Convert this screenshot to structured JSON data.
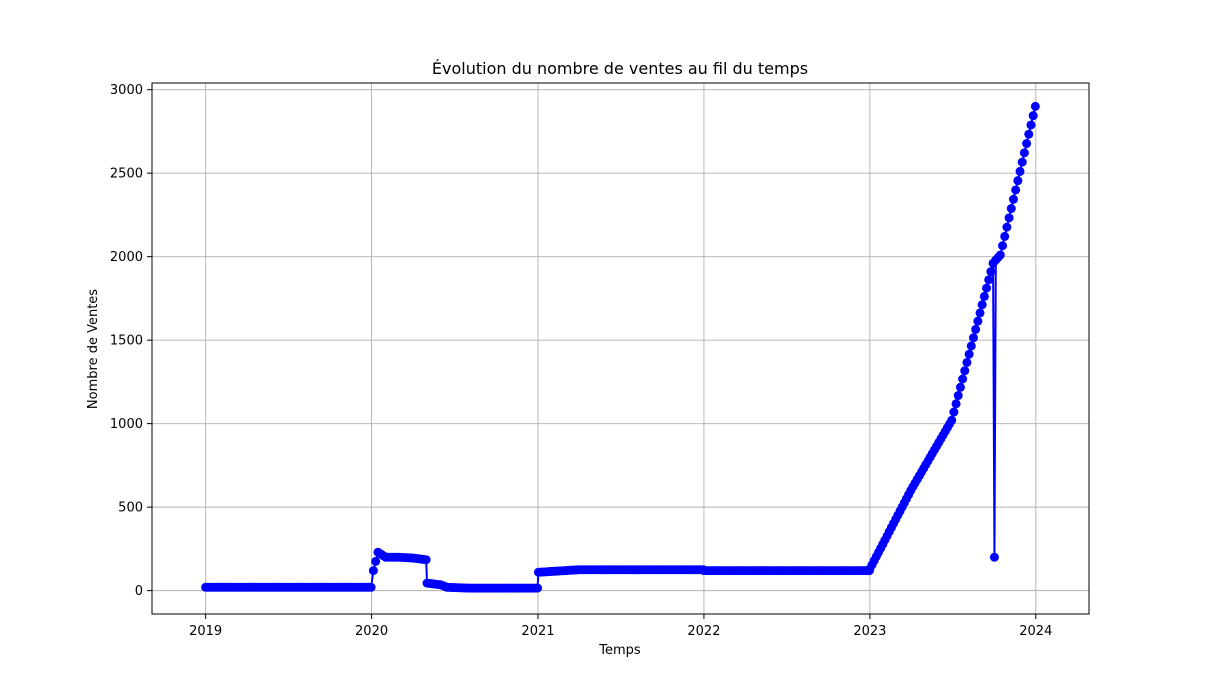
{
  "chart_data": {
    "type": "line",
    "title": "Évolution du nombre de ventes au fil du temps",
    "xlabel": "Temps",
    "ylabel": "Nombre de Ventes",
    "x_ticks": [
      "2019",
      "2020",
      "2021",
      "2022",
      "2023",
      "2024"
    ],
    "y_ticks": [
      "0",
      "500",
      "1000",
      "1500",
      "2000",
      "2500",
      "3000"
    ],
    "xlim": [
      "2018-09-05",
      "2024-04-27"
    ],
    "ylim": [
      -140,
      3040
    ],
    "grid": true,
    "color": "#0000ff",
    "marker": "circle",
    "series": [
      {
        "x": [
          "2019-01-01",
          "2019-04-01",
          "2019-07-01",
          "2019-10-01",
          "2019-12-31",
          "2020-01-05",
          "2020-01-15",
          "2020-02-01",
          "2020-03-01",
          "2020-04-01",
          "2020-04-30",
          "2020-05-02",
          "2020-06-01",
          "2020-06-15",
          "2020-08-01",
          "2020-10-01",
          "2020-12-31",
          "2021-01-02",
          "2021-04-01",
          "2021-07-01",
          "2021-10-01",
          "2021-12-31",
          "2022-01-01",
          "2022-06-01",
          "2022-12-31",
          "2023-01-01",
          "2023-04-01",
          "2023-06-30",
          "2023-09-29",
          "2023-10-02",
          "2023-10-05",
          "2023-10-15",
          "2023-12-31"
        ],
        "y": [
          20,
          20,
          20,
          20,
          20,
          120,
          230,
          200,
          200,
          195,
          185,
          45,
          35,
          20,
          15,
          15,
          15,
          110,
          125,
          125,
          125,
          125,
          120,
          120,
          120,
          130,
          600,
          1020,
          1960,
          200,
          1980,
          2010,
          2900
        ]
      }
    ]
  }
}
